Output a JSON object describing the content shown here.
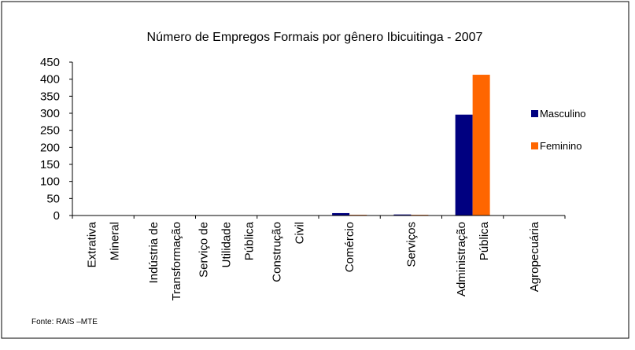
{
  "chart_data": {
    "type": "bar",
    "title": "Número de Empregos Formais por gênero Ibicuitinga - 2007",
    "categories": [
      "Extrativa Mineral",
      "Indústria de Transformação",
      "Serviço de Utilidade Pública",
      "Construção Civil",
      "Comércio",
      "Serviços",
      "Administração Pública",
      "Agropecuária"
    ],
    "series": [
      {
        "name": "Masculino",
        "color": "#000080",
        "values": [
          0,
          0,
          0,
          0,
          7,
          3,
          296,
          0
        ]
      },
      {
        "name": "Feminino",
        "color": "#ff6600",
        "values": [
          0,
          0,
          0,
          0,
          2,
          2,
          413,
          0
        ]
      }
    ],
    "ylim": [
      0,
      450
    ],
    "yticks": [
      0,
      50,
      100,
      150,
      200,
      250,
      300,
      350,
      400,
      450
    ],
    "legend": "right",
    "source": "Fonte: RAIS –MTE"
  }
}
